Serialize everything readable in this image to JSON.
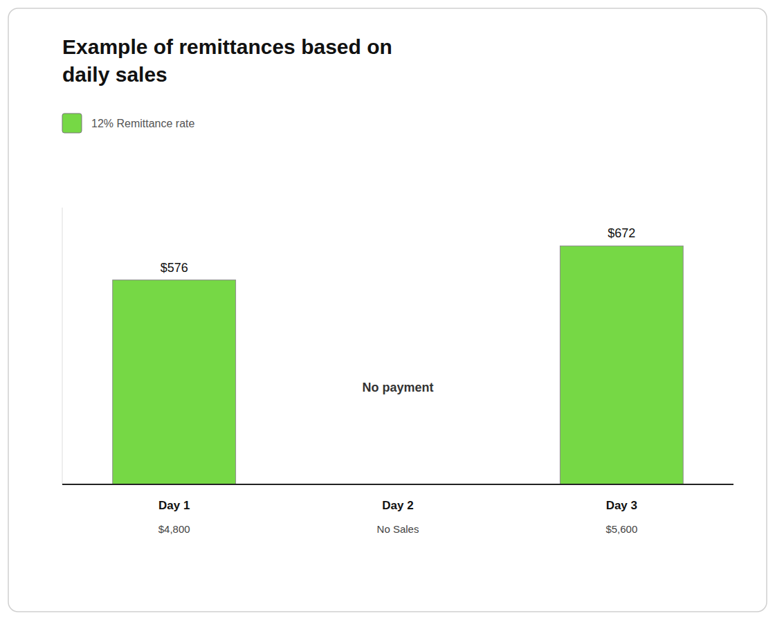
{
  "chart_data": {
    "type": "bar",
    "title": "Example of remittances based on daily sales",
    "categories": [
      "Day 1",
      "Day 2",
      "Day 3"
    ],
    "series": [
      {
        "name": "12% Remittance rate",
        "color": "#76d845",
        "values": [
          576,
          0,
          672
        ],
        "value_labels": [
          "$576",
          null,
          "$672"
        ]
      }
    ],
    "data_labels": true,
    "ylim": [
      0,
      780
    ],
    "tick_labels": false,
    "grid": false,
    "annotations": [
      {
        "text": "$4,800",
        "category": "Day 1"
      },
      {
        "text": "No Sales",
        "category": "Day 2"
      },
      {
        "text": "$5,600",
        "category": "Day 3"
      },
      {
        "text": "No payment",
        "category": "Day 2"
      }
    ]
  }
}
